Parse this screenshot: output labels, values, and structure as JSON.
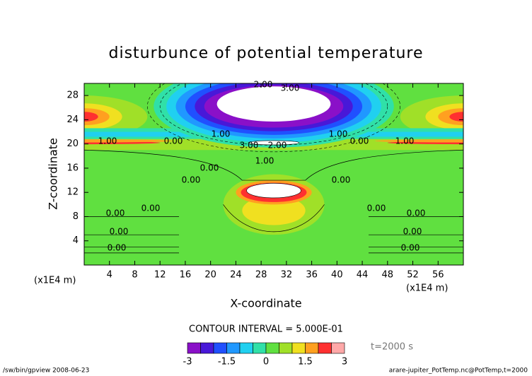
{
  "chart_data": {
    "type": "contour",
    "title": "disturbunce of potential temperature",
    "x_label": "X-coordinate",
    "y_label": "Z-coordinate",
    "x_unit": "(x1E4 m)",
    "y_unit": "(x1E4 m)",
    "xlim": [
      0,
      60
    ],
    "xticks": [
      4,
      8,
      12,
      16,
      20,
      24,
      28,
      32,
      36,
      40,
      44,
      48,
      52,
      56
    ],
    "ylim": [
      0,
      30
    ],
    "yticks": [
      4,
      8,
      12,
      16,
      20,
      24,
      28
    ],
    "contour_interval_label": "CONTOUR INTERVAL = 5.000E-01",
    "time_label": "t=2000 s",
    "levels": [
      -3,
      -2.5,
      -2,
      -1.5,
      -1,
      -0.5,
      0,
      0.5,
      1,
      1.5,
      2,
      2.5,
      3
    ],
    "colors": [
      "#8a10c8",
      "#4818d8",
      "#2050ff",
      "#2098ff",
      "#20d0f0",
      "#30e0a8",
      "#60e040",
      "#a0e028",
      "#f0e020",
      "#ffa020",
      "#ff3030",
      "#ffa8a8"
    ],
    "colorbar_ticks": [
      -3,
      -1.5,
      0,
      1.5,
      3
    ],
    "contour_labels": [
      {
        "value": 2,
        "label": "2.00"
      },
      {
        "value": 3,
        "label": "3.00"
      },
      {
        "value": 1,
        "label": "1.00"
      },
      {
        "value": 1,
        "label": "1.00"
      },
      {
        "value": 1,
        "label": "1.00"
      },
      {
        "value": 0,
        "label": "0.00"
      },
      {
        "value": 0,
        "label": "0.00"
      },
      {
        "value": 1,
        "label": "1.00"
      },
      {
        "value": 3,
        "label": "3.00"
      },
      {
        "value": 2,
        "label": "2.00"
      },
      {
        "value": 0,
        "label": "0.00"
      },
      {
        "value": 0,
        "label": "0.00"
      },
      {
        "value": 0,
        "label": "0.00"
      },
      {
        "value": 1,
        "label": "1.00"
      },
      {
        "value": 0,
        "label": "0.00"
      },
      {
        "value": 0,
        "label": "0.00"
      },
      {
        "value": 0,
        "label": "0.00"
      },
      {
        "value": 0,
        "label": "0.00"
      },
      {
        "value": 0,
        "label": "0.00"
      },
      {
        "value": 0,
        "label": "0.00"
      },
      {
        "value": 0,
        "label": "0.00"
      },
      {
        "value": 0,
        "label": "0.00"
      }
    ],
    "footer_left": "/sw/bin/gpview  2008-06-23",
    "footer_right": "arare-jupiter_PotTemp.nc@PotTemp,t=2000"
  }
}
